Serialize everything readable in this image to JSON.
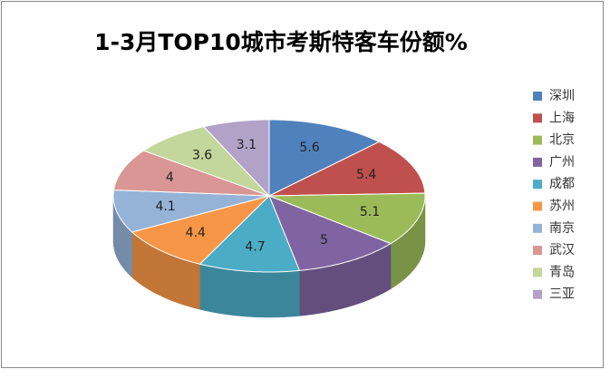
{
  "chart_data": {
    "type": "pie3d",
    "title": "1-3月TOP10城市考斯特客车份额%",
    "categories": [
      "深圳",
      "上海",
      "北京",
      "广州",
      "成都",
      "苏州",
      "南京",
      "武汉",
      "青岛",
      "三亚"
    ],
    "values": [
      5.6,
      5.4,
      5.1,
      5,
      4.7,
      4.4,
      4.1,
      4,
      3.6,
      3.1
    ],
    "colors": [
      "#4f81bd",
      "#c0504d",
      "#9bbb59",
      "#8064a2",
      "#4bacc6",
      "#f79646",
      "#95b3d7",
      "#d99694",
      "#c3d69b",
      "#b3a2c7"
    ],
    "legend": "right"
  }
}
